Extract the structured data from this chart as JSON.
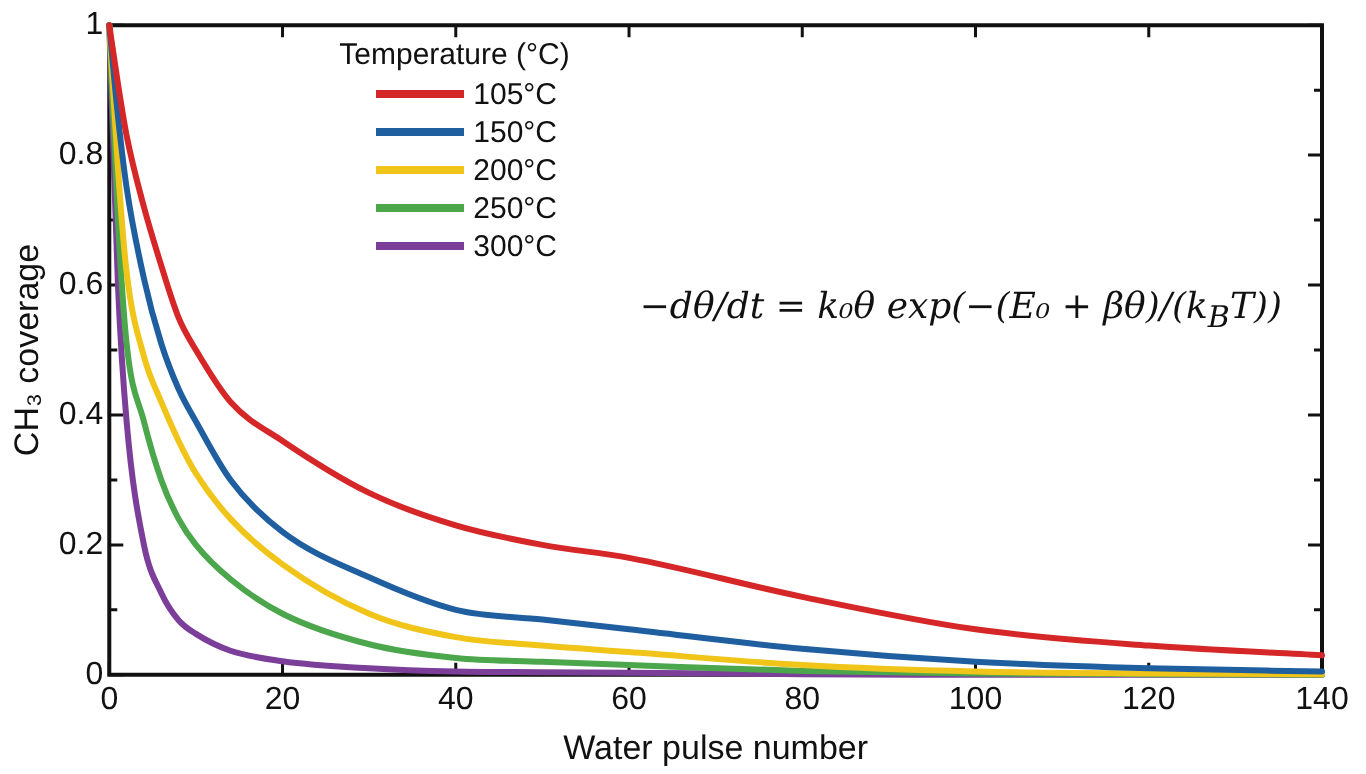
{
  "chart_data": {
    "type": "line",
    "xlabel": "Water pulse number",
    "ylabel": "CH₃ coverage",
    "legend_title": "Temperature (°C)",
    "x": [
      0,
      1,
      2,
      4,
      6,
      8,
      10,
      14,
      20,
      30,
      40,
      50,
      60,
      80,
      100,
      120,
      140
    ],
    "series": [
      {
        "name": "105°C",
        "color": "#d62728",
        "values": [
          1,
          0.91,
          0.83,
          0.72,
          0.63,
          0.55,
          0.5,
          0.42,
          0.36,
          0.28,
          0.23,
          0.2,
          0.18,
          0.12,
          0.07,
          0.045,
          0.03
        ]
      },
      {
        "name": "150°C",
        "color": "#1f5fa0",
        "values": [
          1,
          0.86,
          0.75,
          0.61,
          0.51,
          0.44,
          0.39,
          0.3,
          0.22,
          0.15,
          0.1,
          0.085,
          0.07,
          0.04,
          0.02,
          0.01,
          0.005
        ]
      },
      {
        "name": "200°C",
        "color": "#f0c419",
        "values": [
          1,
          0.78,
          0.62,
          0.49,
          0.42,
          0.36,
          0.31,
          0.24,
          0.17,
          0.094,
          0.058,
          0.045,
          0.035,
          0.015,
          0.005,
          0.002,
          0.001
        ]
      },
      {
        "name": "250°C",
        "color": "#4ca64c",
        "values": [
          1,
          0.7,
          0.51,
          0.39,
          0.3,
          0.24,
          0.2,
          0.147,
          0.094,
          0.047,
          0.026,
          0.02,
          0.015,
          0.006,
          0.002,
          0.001,
          0
        ]
      },
      {
        "name": "300°C",
        "color": "#7b3f9a",
        "values": [
          1,
          0.6,
          0.39,
          0.2,
          0.126,
          0.084,
          0.063,
          0.037,
          0.021,
          0.01,
          0.005,
          0.004,
          0.003,
          0.001,
          0,
          0,
          0
        ]
      }
    ],
    "xlim": [
      0,
      140
    ],
    "xticks": [
      0,
      20,
      40,
      60,
      80,
      100,
      120,
      140
    ],
    "ylim": [
      0,
      1
    ],
    "yticks": [
      0,
      {
        "value": 0.1,
        "label": null
      },
      0.2,
      {
        "value": 0.3,
        "label": null
      },
      0.4,
      {
        "value": 0.5,
        "label": null
      },
      0.6,
      {
        "value": 0.7,
        "label": null
      },
      0.8,
      {
        "value": 0.9,
        "label": null
      },
      1
    ],
    "grid": false,
    "legend": "top left",
    "marker": "none",
    "line_style": "solid",
    "annotations": [
      "−dθ/dt = k₀θ exp(−(E₀ + βθ)/(k$_{B}$T))"
    ]
  }
}
